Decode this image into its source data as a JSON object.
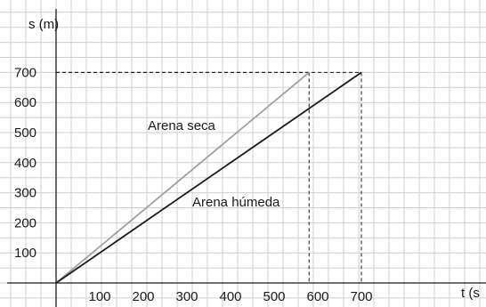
{
  "chart_data": {
    "type": "line",
    "title": "",
    "xlabel": "t (s",
    "ylabel": "s (m)",
    "xlim": [
      0,
      950
    ],
    "ylim": [
      -40,
      900
    ],
    "xticks": [
      100,
      200,
      300,
      400,
      500,
      600,
      700
    ],
    "yticks": [
      100,
      200,
      300,
      400,
      500,
      600,
      700
    ],
    "xtick_labels": [
      "100",
      "200",
      "300",
      "400",
      "500",
      "600",
      "700"
    ],
    "ytick_labels": [
      "100",
      "200",
      "300",
      "400",
      "500",
      "600",
      "700"
    ],
    "grid": true,
    "series": [
      {
        "name": "Arena seca",
        "color": "#a0a0a0",
        "points": [
          [
            0,
            0
          ],
          [
            580,
            700
          ]
        ]
      },
      {
        "name": "Arena húmeda",
        "color": "#1a1a1a",
        "points": [
          [
            0,
            0
          ],
          [
            700,
            700
          ]
        ]
      }
    ],
    "reference_lines": [
      {
        "x": 580,
        "y": 700
      },
      {
        "x": 700,
        "y": 700
      }
    ]
  }
}
